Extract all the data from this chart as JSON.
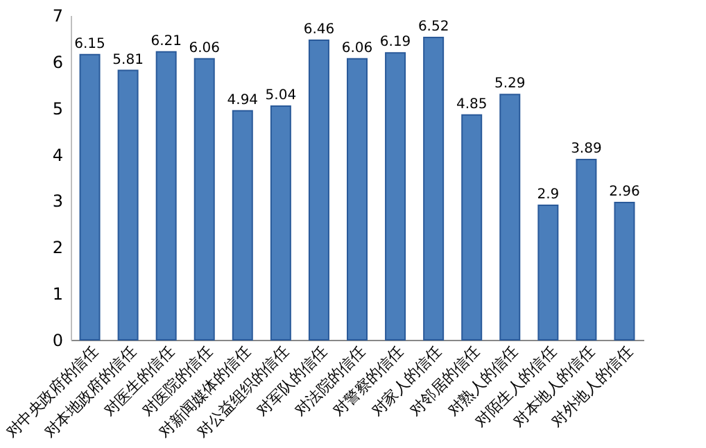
{
  "chart_data": {
    "type": "bar",
    "categories": [
      "对中央政府的信任",
      "对本地政府的信任",
      "对医生的信任",
      "对医院的信任",
      "对新闻媒体的信任",
      "对公益组织的信任",
      "对军队的信任",
      "对法院的信任",
      "对警察的信任",
      "对家人的信任",
      "对邻居的信任",
      "对熟人的信任",
      "对陌生人的信任",
      "对本地人的信任",
      "对外地人的信任"
    ],
    "values": [
      6.15,
      5.81,
      6.21,
      6.06,
      4.94,
      5.04,
      6.46,
      6.06,
      6.19,
      6.52,
      4.85,
      5.29,
      2.9,
      3.89,
      2.96
    ],
    "color": "#4a7ebb",
    "ylim": [
      0,
      7
    ],
    "yticks": [
      0,
      1,
      2,
      3,
      4,
      5,
      6,
      7
    ],
    "grid": false,
    "data_labels": true
  }
}
